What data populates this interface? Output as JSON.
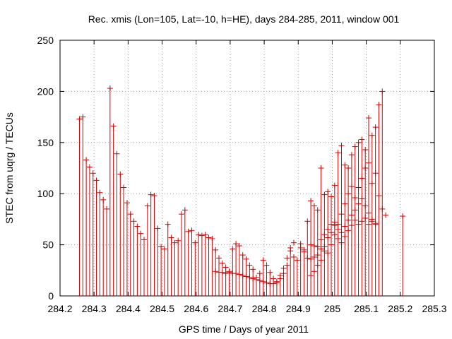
{
  "chart_data": {
    "type": "scatter",
    "title": "Rec. xmis (Lon=105, Lat=-10, h=HE), days 284-285, 2011, window 001",
    "xlabel": "GPS time / Days of year 2011",
    "ylabel": "STEC from uqrg / TECUs",
    "xlim": [
      284.2,
      285.3
    ],
    "ylim": [
      0,
      250
    ],
    "x_ticks": [
      "284.2",
      "284.3",
      "284.4",
      "284.5",
      "284.6",
      "284.7",
      "284.8",
      "284.9",
      "285",
      "285.1",
      "285.2",
      "285.3"
    ],
    "x_tick_values": [
      284.2,
      284.3,
      284.4,
      284.5,
      284.6,
      284.7,
      284.8,
      284.9,
      285.0,
      285.1,
      285.2,
      285.3
    ],
    "y_ticks": [
      "0",
      "50",
      "100",
      "150",
      "200",
      "250"
    ],
    "y_tick_values": [
      0,
      50,
      100,
      150,
      200,
      250
    ],
    "grid": true,
    "series_color": "#cc0000",
    "marker": "plus-with-drop-line",
    "points": [
      [
        284.257,
        173
      ],
      [
        284.267,
        175
      ],
      [
        284.277,
        133
      ],
      [
        284.287,
        126
      ],
      [
        284.297,
        120
      ],
      [
        284.307,
        113
      ],
      [
        284.317,
        101
      ],
      [
        284.327,
        94
      ],
      [
        284.337,
        85
      ],
      [
        284.347,
        203
      ],
      [
        284.357,
        166
      ],
      [
        284.367,
        139
      ],
      [
        284.377,
        119
      ],
      [
        284.387,
        106
      ],
      [
        284.397,
        91
      ],
      [
        284.407,
        80
      ],
      [
        284.417,
        73
      ],
      [
        284.427,
        68
      ],
      [
        284.437,
        61
      ],
      [
        284.447,
        55
      ],
      [
        284.457,
        88
      ],
      [
        284.467,
        99
      ],
      [
        284.477,
        98
      ],
      [
        284.487,
        66
      ],
      [
        284.497,
        48
      ],
      [
        284.507,
        46
      ],
      [
        284.517,
        70
      ],
      [
        284.527,
        57
      ],
      [
        284.537,
        52
      ],
      [
        284.547,
        54
      ],
      [
        284.557,
        80
      ],
      [
        284.567,
        84
      ],
      [
        284.577,
        63
      ],
      [
        284.587,
        64
      ],
      [
        284.597,
        52
      ],
      [
        284.607,
        60
      ],
      [
        284.617,
        59
      ],
      [
        284.627,
        60
      ],
      [
        284.637,
        57
      ],
      [
        284.647,
        56
      ],
      [
        284.657,
        45
      ],
      [
        284.667,
        37
      ],
      [
        284.677,
        32
      ],
      [
        284.687,
        28
      ],
      [
        284.697,
        24
      ],
      [
        284.707,
        46
      ],
      [
        284.717,
        51
      ],
      [
        284.727,
        49
      ],
      [
        284.737,
        40
      ],
      [
        284.747,
        36
      ],
      [
        284.757,
        30
      ],
      [
        284.767,
        26
      ],
      [
        284.777,
        18
      ],
      [
        284.787,
        22
      ],
      [
        284.797,
        35
      ],
      [
        284.807,
        30
      ],
      [
        284.817,
        23
      ],
      [
        284.827,
        17
      ],
      [
        284.837,
        13
      ],
      [
        284.847,
        17
      ],
      [
        284.857,
        22
      ],
      [
        284.867,
        30
      ],
      [
        284.877,
        47
      ],
      [
        284.887,
        38
      ],
      [
        284.897,
        35
      ],
      [
        284.907,
        51
      ],
      [
        284.917,
        45
      ],
      [
        284.927,
        73
      ],
      [
        284.937,
        93
      ],
      [
        284.947,
        88
      ],
      [
        284.957,
        84
      ],
      [
        284.967,
        125
      ],
      [
        284.977,
        99
      ],
      [
        284.987,
        102
      ],
      [
        284.997,
        97
      ],
      [
        285.007,
        108
      ],
      [
        285.017,
        140
      ],
      [
        285.027,
        147
      ],
      [
        285.037,
        128
      ],
      [
        285.047,
        125
      ],
      [
        285.057,
        138
      ],
      [
        285.067,
        146
      ],
      [
        285.077,
        150
      ],
      [
        285.087,
        153
      ],
      [
        285.097,
        143
      ],
      [
        285.107,
        174
      ],
      [
        285.117,
        157
      ],
      [
        285.127,
        165
      ],
      [
        285.137,
        187
      ],
      [
        285.147,
        200
      ],
      [
        285.207,
        78
      ]
    ],
    "points_extra": [
      [
        284.657,
        24
      ],
      [
        284.667,
        23
      ],
      [
        284.677,
        23
      ],
      [
        284.687,
        22
      ],
      [
        284.697,
        23
      ],
      [
        284.707,
        22
      ],
      [
        284.717,
        22
      ],
      [
        284.727,
        21
      ],
      [
        284.737,
        20
      ],
      [
        284.747,
        19
      ],
      [
        284.757,
        18
      ],
      [
        284.767,
        17
      ],
      [
        284.777,
        16
      ],
      [
        284.787,
        15
      ],
      [
        284.797,
        14
      ],
      [
        284.807,
        13
      ],
      [
        284.817,
        12
      ],
      [
        284.827,
        12
      ],
      [
        284.837,
        14
      ],
      [
        284.847,
        20
      ],
      [
        284.857,
        27
      ],
      [
        284.867,
        37
      ],
      [
        284.877,
        44
      ],
      [
        284.887,
        52
      ],
      [
        284.907,
        47
      ],
      [
        284.917,
        43
      ],
      [
        284.927,
        37
      ],
      [
        284.937,
        50
      ],
      [
        284.947,
        49
      ],
      [
        284.957,
        48
      ],
      [
        284.967,
        46
      ],
      [
        284.977,
        44
      ],
      [
        284.987,
        42
      ],
      [
        284.997,
        50
      ],
      [
        285.007,
        60
      ],
      [
        285.017,
        70
      ],
      [
        285.027,
        80
      ],
      [
        285.037,
        90
      ],
      [
        285.047,
        100
      ],
      [
        285.057,
        107
      ],
      [
        285.067,
        96
      ],
      [
        285.077,
        106
      ],
      [
        285.087,
        115
      ],
      [
        285.097,
        125
      ],
      [
        285.107,
        130
      ],
      [
        285.117,
        110
      ],
      [
        285.127,
        120
      ],
      [
        285.137,
        98
      ],
      [
        285.147,
        85
      ],
      [
        285.157,
        79
      ],
      [
        284.937,
        36
      ],
      [
        284.947,
        38
      ],
      [
        284.957,
        40
      ],
      [
        284.967,
        55
      ],
      [
        284.977,
        60
      ],
      [
        284.987,
        65
      ],
      [
        284.997,
        70
      ],
      [
        285.007,
        72
      ],
      [
        285.017,
        65
      ],
      [
        285.027,
        62
      ],
      [
        285.037,
        68
      ],
      [
        285.047,
        74
      ],
      [
        285.057,
        79
      ],
      [
        285.067,
        84
      ],
      [
        285.077,
        90
      ],
      [
        285.087,
        95
      ],
      [
        285.097,
        88
      ],
      [
        285.107,
        81
      ],
      [
        285.117,
        75
      ],
      [
        285.127,
        70
      ],
      [
        284.937,
        20
      ],
      [
        284.947,
        24
      ],
      [
        284.957,
        30
      ],
      [
        284.967,
        35
      ],
      [
        284.977,
        48
      ],
      [
        284.987,
        57
      ],
      [
        284.997,
        62
      ],
      [
        285.007,
        69
      ],
      [
        285.017,
        56
      ],
      [
        285.027,
        52
      ],
      [
        285.037,
        58
      ],
      [
        285.047,
        64
      ],
      [
        285.057,
        69
      ],
      [
        285.067,
        74
      ],
      [
        285.077,
        70
      ],
      [
        285.087,
        73
      ],
      [
        285.097,
        76
      ],
      [
        285.107,
        70
      ],
      [
        285.117,
        73
      ],
      [
        285.127,
        71
      ]
    ]
  }
}
